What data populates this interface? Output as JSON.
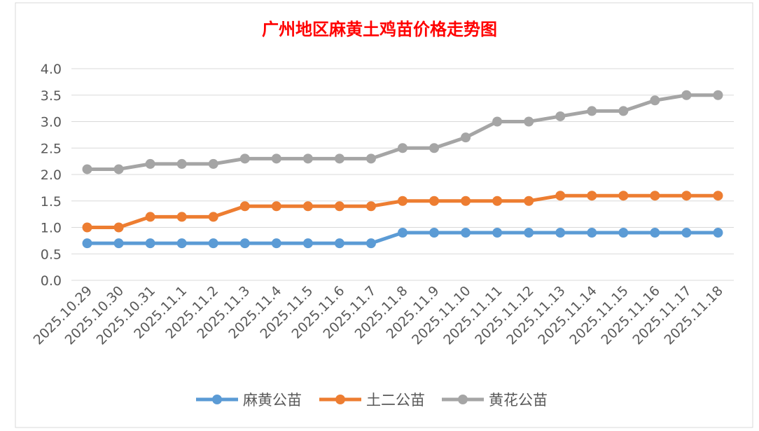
{
  "chart_data": {
    "type": "line",
    "title": "广州地区麻黄土鸡苗价格走势图",
    "title_color": "#FF0000",
    "xlabel": "",
    "ylabel": "",
    "ylim": [
      0,
      4.0
    ],
    "yticks": [
      "0.0",
      "0.5",
      "1.0",
      "1.5",
      "2.0",
      "2.5",
      "3.0",
      "3.5",
      "4.0"
    ],
    "grid": true,
    "legend_position": "bottom",
    "categories": [
      "2025.10.29",
      "2025.10.30",
      "2025.10.31",
      "2025.11.1",
      "2025.11.2",
      "2025.11.3",
      "2025.11.4",
      "2025.11.5",
      "2025.11.6",
      "2025.11.7",
      "2025.11.8",
      "2025.11.9",
      "2025.11.10",
      "2025.11.11",
      "2025.11.12",
      "2025.11.13",
      "2025.11.14",
      "2025.11.15",
      "2025.11.16",
      "2025.11.17",
      "2025.11.18"
    ],
    "series": [
      {
        "name": "麻黄公苗",
        "color": "#5B9BD5",
        "values": [
          0.7,
          0.7,
          0.7,
          0.7,
          0.7,
          0.7,
          0.7,
          0.7,
          0.7,
          0.7,
          0.9,
          0.9,
          0.9,
          0.9,
          0.9,
          0.9,
          0.9,
          0.9,
          0.9,
          0.9,
          0.9
        ]
      },
      {
        "name": "土二公苗",
        "color": "#ED7D31",
        "values": [
          1.0,
          1.0,
          1.2,
          1.2,
          1.2,
          1.4,
          1.4,
          1.4,
          1.4,
          1.4,
          1.5,
          1.5,
          1.5,
          1.5,
          1.5,
          1.6,
          1.6,
          1.6,
          1.6,
          1.6,
          1.6
        ]
      },
      {
        "name": "黄花公苗",
        "color": "#A5A5A5",
        "values": [
          2.1,
          2.1,
          2.2,
          2.2,
          2.2,
          2.3,
          2.3,
          2.3,
          2.3,
          2.3,
          2.5,
          2.5,
          2.7,
          3.0,
          3.0,
          3.1,
          3.2,
          3.2,
          3.4,
          3.5,
          3.5
        ]
      }
    ]
  }
}
